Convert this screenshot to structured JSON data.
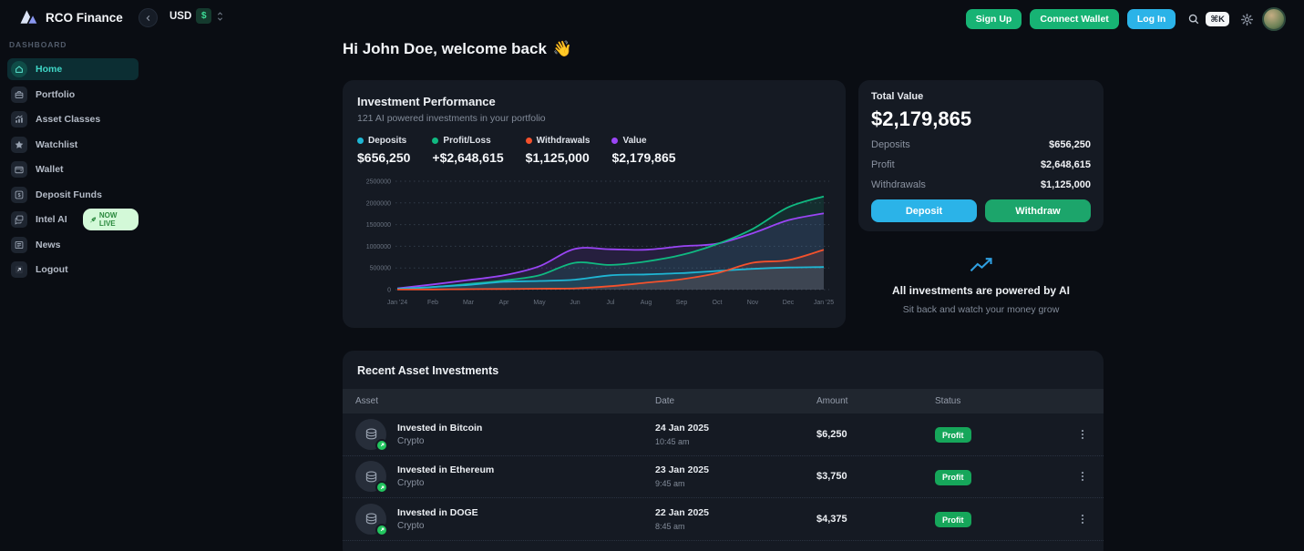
{
  "header": {
    "brand": "RCO Finance",
    "currency_code": "USD",
    "currency_symbol": "$",
    "sign_up": "Sign Up",
    "connect_wallet": "Connect Wallet",
    "log_in": "Log In",
    "search_shortcut": "⌘K"
  },
  "sidebar": {
    "section_label": "DASHBOARD",
    "items": [
      {
        "label": "Home"
      },
      {
        "label": "Portfolio"
      },
      {
        "label": "Asset Classes"
      },
      {
        "label": "Watchlist"
      },
      {
        "label": "Wallet"
      },
      {
        "label": "Deposit Funds"
      },
      {
        "label": "Intel AI",
        "badge": "NOW LIVE"
      },
      {
        "label": "News"
      },
      {
        "label": "Logout"
      }
    ]
  },
  "page": {
    "greeting": "Hi John Doe, welcome back",
    "greeting_emoji": "👋"
  },
  "performance": {
    "title": "Investment Performance",
    "subtitle": "121 AI powered investments in your portfolio",
    "legend": [
      {
        "label": "Deposits",
        "value": "$656,250",
        "color": "#1fb6d4"
      },
      {
        "label": "Profit/Loss",
        "value": "+$2,648,615",
        "color": "#10b981"
      },
      {
        "label": "Withdrawals",
        "value": "$1,125,000",
        "color": "#f4512c"
      },
      {
        "label": "Value",
        "value": "$2,179,865",
        "color": "#9a45f5"
      }
    ]
  },
  "chart_data": {
    "type": "area",
    "title": "Investment Performance",
    "x_labels": [
      "Jan '24",
      "Feb",
      "Mar",
      "Apr",
      "May",
      "Jun",
      "Jul",
      "Aug",
      "Sep",
      "Oct",
      "Nov",
      "Dec",
      "Jan '25"
    ],
    "series": [
      {
        "name": "Deposits",
        "color": "#1fb6d4",
        "values": [
          20000,
          60000,
          110000,
          180000,
          200000,
          230000,
          330000,
          350000,
          380000,
          430000,
          480000,
          510000,
          520000
        ]
      },
      {
        "name": "Profit/Loss",
        "color": "#10b981",
        "values": [
          10000,
          60000,
          130000,
          210000,
          330000,
          620000,
          570000,
          650000,
          800000,
          1050000,
          1400000,
          1900000,
          2150000
        ]
      },
      {
        "name": "Withdrawals",
        "color": "#f4512c",
        "values": [
          2000,
          5000,
          10000,
          15000,
          20000,
          30000,
          80000,
          160000,
          240000,
          380000,
          620000,
          680000,
          920000
        ]
      },
      {
        "name": "Value",
        "color": "#9a45f5",
        "values": [
          30000,
          120000,
          220000,
          330000,
          540000,
          940000,
          930000,
          920000,
          1000000,
          1060000,
          1300000,
          1600000,
          1760000
        ]
      }
    ],
    "ylim": [
      0,
      2500000
    ],
    "y_ticks": [
      0,
      500000,
      1000000,
      1500000,
      2000000,
      2500000
    ],
    "grid": "horizontal-dotted",
    "legend_position": "top"
  },
  "total_value": {
    "title": "Total Value",
    "amount": "$2,179,865",
    "rows": [
      {
        "label": "Deposits",
        "value": "$656,250"
      },
      {
        "label": "Profit",
        "value": "$2,648,615"
      },
      {
        "label": "Withdrawals",
        "value": "$1,125,000"
      }
    ],
    "deposit_label": "Deposit",
    "withdraw_label": "Withdraw"
  },
  "ai_blurb": {
    "title": "All investments are powered by AI",
    "subtitle": "Sit back and watch your money grow"
  },
  "investments": {
    "title": "Recent Asset Investments",
    "columns": [
      "Asset",
      "Date",
      "Amount",
      "Status"
    ],
    "rows": [
      {
        "name": "Invested in Bitcoin",
        "category": "Crypto",
        "date": "24 Jan 2025",
        "time": "10:45 am",
        "amount": "$6,250",
        "status": "Profit"
      },
      {
        "name": "Invested in Ethereum",
        "category": "Crypto",
        "date": "23 Jan 2025",
        "time": "9:45 am",
        "amount": "$3,750",
        "status": "Profit"
      },
      {
        "name": "Invested in DOGE",
        "category": "Crypto",
        "date": "22 Jan 2025",
        "time": "8:45 am",
        "amount": "$4,375",
        "status": "Profit"
      }
    ]
  },
  "colors": {
    "page_bg": "#0a0d13",
    "card_bg": "#151a23",
    "green_button": "#17b374",
    "cyan_button": "#2bb3e8",
    "profit_badge": "#16a65a",
    "sidebar_active_bg": "#0c2e33",
    "sidebar_active_text": "#3fd6c6",
    "now_live_badge_bg": "#d3f9d8",
    "now_live_badge_text": "#2b8a3e"
  }
}
